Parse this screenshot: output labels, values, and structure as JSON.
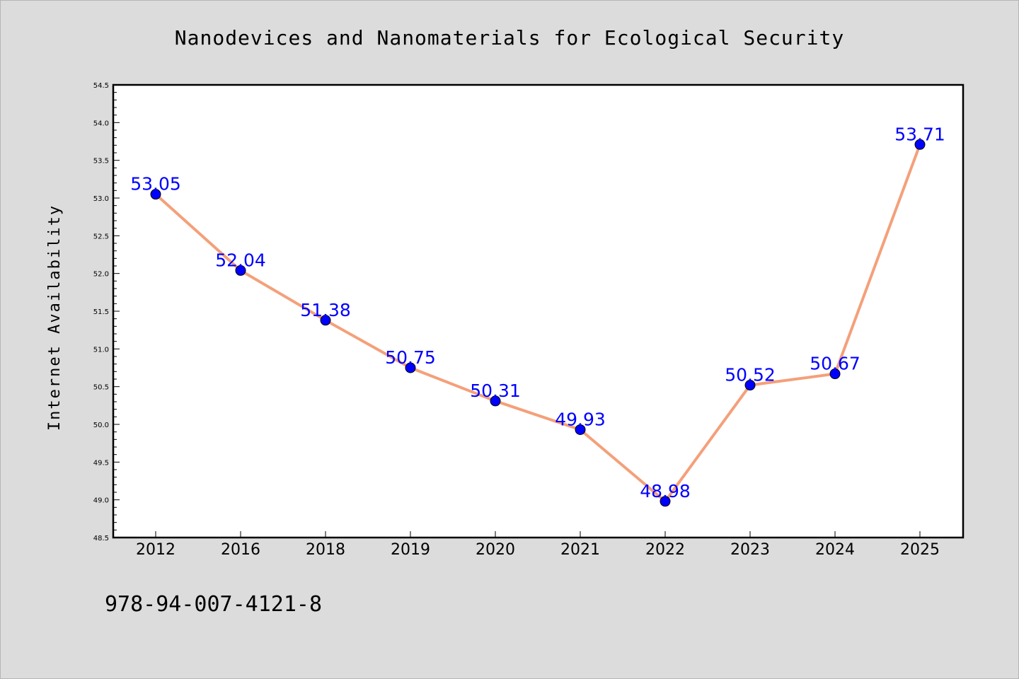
{
  "chart_data": {
    "type": "line",
    "title": "Nanodevices and Nanomaterials for Ecological Security",
    "xlabel": "",
    "ylabel": "Internet Availability",
    "categories": [
      "2012",
      "2016",
      "2018",
      "2019",
      "2020",
      "2021",
      "2022",
      "2023",
      "2024",
      "2025"
    ],
    "series": [
      {
        "values": [
          53.05,
          52.04,
          51.38,
          50.75,
          50.31,
          49.93,
          48.98,
          50.52,
          50.67,
          53.71
        ],
        "data_labels": [
          "53.05",
          "52.04",
          "51.38",
          "50.75",
          "50.31",
          "49.93",
          "48.98",
          "50.52",
          "50.67",
          "53.71"
        ],
        "line_color": "#f4a07a",
        "marker_color": "#0000ff"
      }
    ],
    "ylim": [
      48.5,
      54.5
    ],
    "yticks": [
      "48.5",
      "49.0",
      "49.5",
      "50.0",
      "50.5",
      "51.0",
      "51.5",
      "52.0",
      "52.5",
      "53.0",
      "53.5",
      "54.0",
      "54.5"
    ],
    "grid": false,
    "legend": "none"
  },
  "footer": {
    "isbn": "978-94-007-4121-8"
  },
  "colors": {
    "background": "#dcdcdc",
    "plot_background": "#ffffff",
    "line": "#f4a07a",
    "marker": "#0000ff",
    "data_label": "#0000ff"
  }
}
